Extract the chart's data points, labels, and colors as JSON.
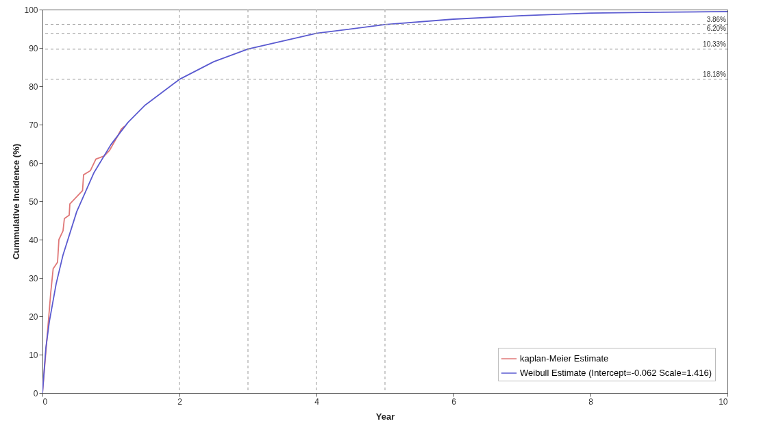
{
  "chart_data": {
    "type": "line",
    "xlabel": "Year",
    "ylabel": "Cummulative Incidence (%)",
    "xlim": [
      0,
      10
    ],
    "xticks": [
      0,
      2,
      4,
      6,
      8,
      10
    ],
    "ylim": [
      0,
      100
    ],
    "yticks": [
      0,
      10,
      20,
      30,
      40,
      50,
      60,
      70,
      80,
      90,
      100
    ],
    "grid": false,
    "legend": "bottom right",
    "line_style": "solid",
    "marker": "none",
    "series": [
      {
        "name": "kaplan-Meier Estimate",
        "color": "#e07878",
        "x": [
          0,
          0.12,
          0.156,
          0.22,
          0.24,
          0.3,
          0.32,
          0.39,
          0.4,
          0.585,
          0.6,
          0.7,
          0.78,
          0.9,
          0.98,
          1.1,
          1.15,
          1.2
        ],
        "values": [
          0,
          26.0,
          32.4,
          34.1,
          40.0,
          42.3,
          45.5,
          46.4,
          49.3,
          52.8,
          56.9,
          58.0,
          61.0,
          61.8,
          63.3,
          67.1,
          68.8,
          69.6
        ]
      },
      {
        "name": "Weibull Estimate (Intercept=-0.062 Scale=1.416)",
        "color": "#5a5ad0",
        "x": [
          0,
          0.05,
          0.1,
          0.2,
          0.3,
          0.5,
          0.75,
          1,
          1.25,
          1.5,
          2,
          2.5,
          3,
          4,
          5,
          6,
          7,
          8,
          9,
          10
        ],
        "values": [
          0,
          11.8,
          18.6,
          28.5,
          36.0,
          47.3,
          57.4,
          64.8,
          70.6,
          75.1,
          81.8,
          86.4,
          89.7,
          93.8,
          96.1,
          97.5,
          98.4,
          99.1,
          99.3,
          99.5
        ]
      }
    ],
    "ref_lines": [
      {
        "axis": "y",
        "value": 96.14,
        "color": "#999999",
        "line_style": "dashed"
      },
      {
        "axis": "y",
        "value": 93.8,
        "color": "#999999",
        "line_style": "dashed"
      },
      {
        "axis": "y",
        "value": 89.67,
        "color": "#999999",
        "line_style": "dashed"
      },
      {
        "axis": "y",
        "value": 81.82,
        "color": "#999999",
        "line_style": "dashed"
      },
      {
        "axis": "x",
        "value": 2,
        "color": "#999999",
        "line_style": "dashed"
      },
      {
        "axis": "x",
        "value": 3,
        "color": "#999999",
        "line_style": "dashed"
      },
      {
        "axis": "x",
        "value": 4,
        "color": "#999999",
        "line_style": "dashed"
      },
      {
        "axis": "x",
        "value": 5,
        "color": "#999999",
        "line_style": "dashed"
      }
    ],
    "annotations": [
      {
        "text": "3.86%",
        "y": 96.14
      },
      {
        "text": "6.20%",
        "y": 93.8
      },
      {
        "text": "10.33%",
        "y": 89.67
      },
      {
        "text": "18.18%",
        "y": 81.82
      }
    ]
  }
}
